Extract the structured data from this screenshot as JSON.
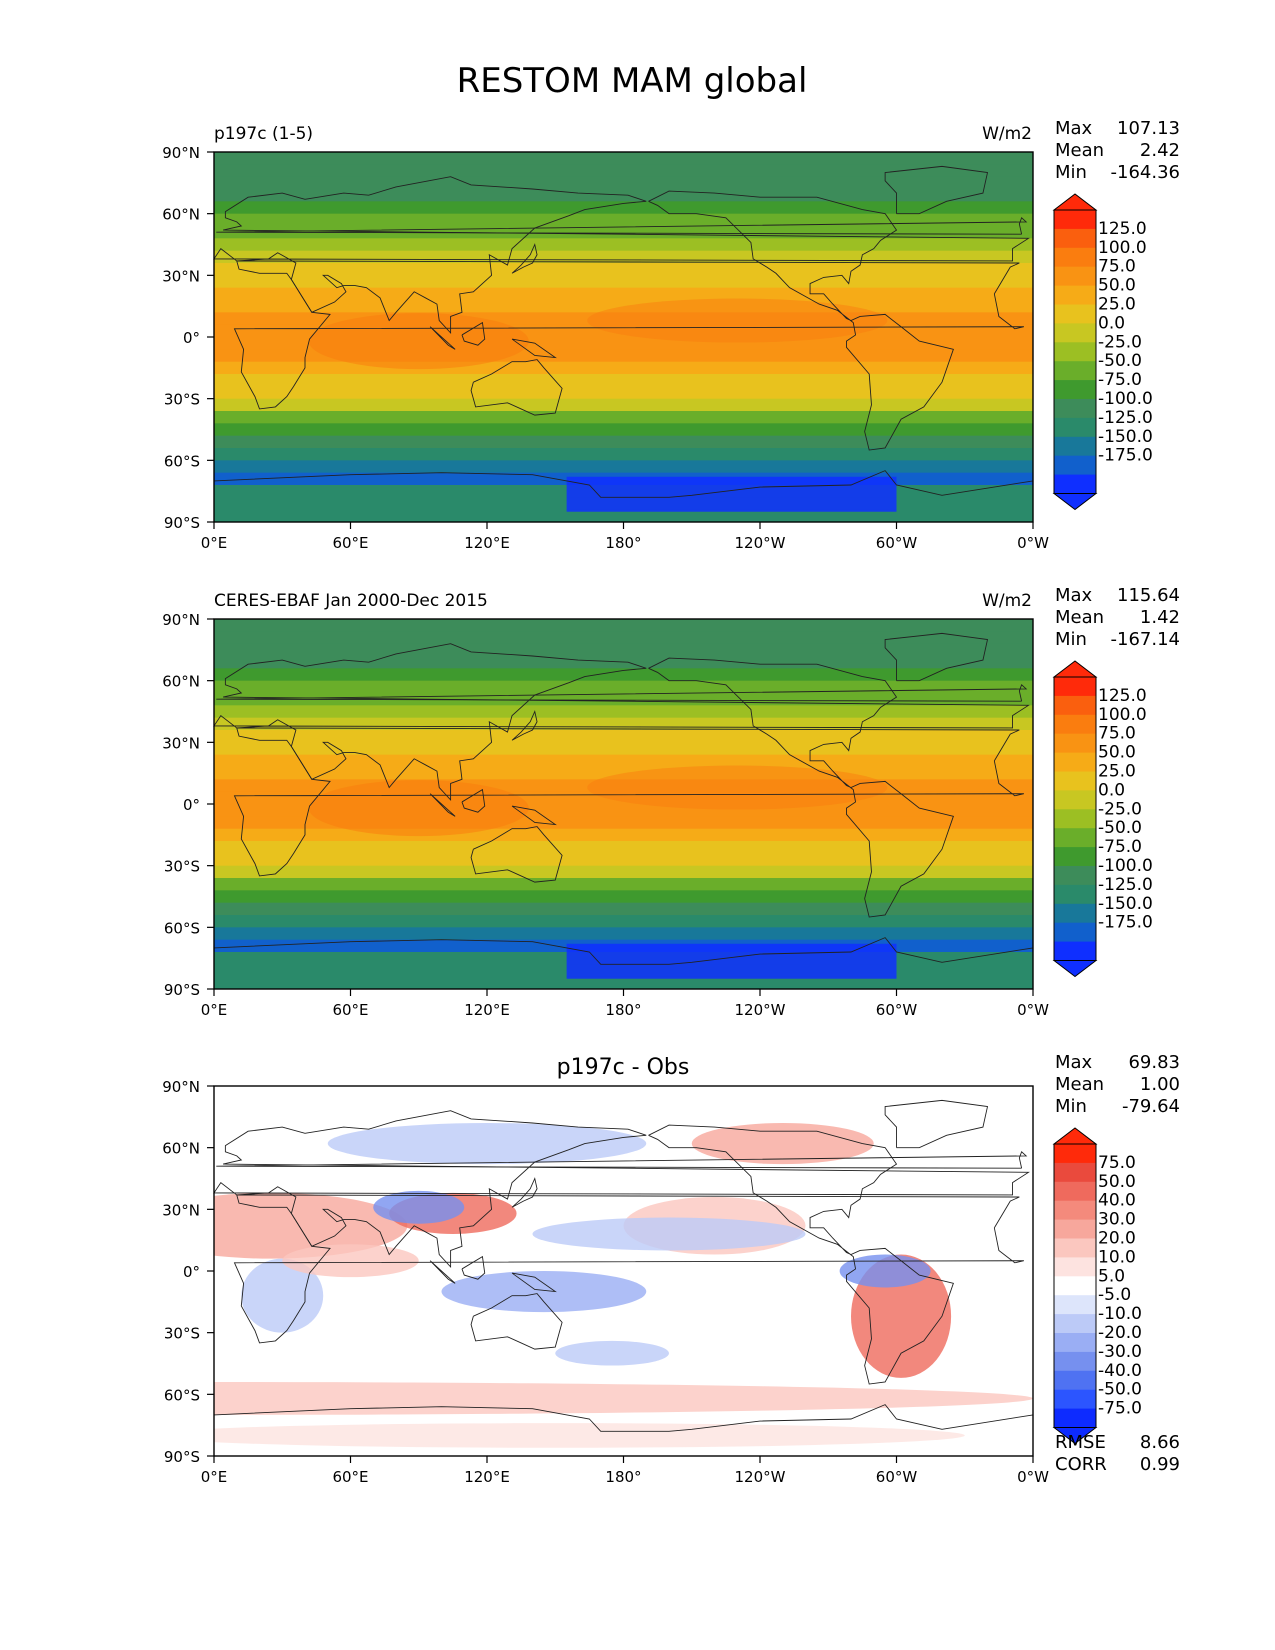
{
  "title": "RESTOM MAM global",
  "lat_labels": [
    "90°N",
    "60°N",
    "30°N",
    "0°",
    "30°S",
    "60°S",
    "90°S"
  ],
  "lon_labels": [
    "0°E",
    "60°E",
    "120°E",
    "180°",
    "120°W",
    "60°W",
    "0°W"
  ],
  "colors": {
    "ocean_fill_land_outline": "#222222",
    "test_ref_palette": [
      "#0f2fff",
      "#1160cc",
      "#18789a",
      "#2a8a6a",
      "#3d8c5a",
      "#3f9a2e",
      "#6aae2a",
      "#9cbf23",
      "#c8c722",
      "#e8c21e",
      "#f6ab17",
      "#f99313",
      "#fa7d0f",
      "#fa5f0e",
      "#ff2a0a"
    ],
    "diff_palette": [
      "#0d2bff",
      "#2c55ff",
      "#4f72f2",
      "#7690ef",
      "#9aaef4",
      "#bccaf7",
      "#dde5fb",
      "#ffffff",
      "#fde3e0",
      "#fbc7bf",
      "#f7a79c",
      "#f48a7c",
      "#ef6a5d",
      "#ea4a3d",
      "#ff2a0a"
    ]
  },
  "panels": [
    {
      "id": "test",
      "title_left": "p197c (1-5)",
      "title_right": "W/m2",
      "title_center": "",
      "stats": {
        "max_label": "Max",
        "max_value": "107.13",
        "mean_label": "Mean",
        "mean_value": "2.42",
        "min_label": "Min",
        "min_value": "-164.36"
      },
      "colorbar_labels": [
        "125.0",
        "100.0",
        "75.0",
        "50.0",
        "25.0",
        "0.0",
        "-25.0",
        "-50.0",
        "-75.0",
        "-100.0",
        "-125.0",
        "-150.0",
        "-175.0"
      ],
      "extra_stats": null
    },
    {
      "id": "reference",
      "title_left": "CERES-EBAF Jan 2000-Dec 2015",
      "title_right": "W/m2",
      "title_center": "",
      "stats": {
        "max_label": "Max",
        "max_value": "115.64",
        "mean_label": "Mean",
        "mean_value": "1.42",
        "min_label": "Min",
        "min_value": "-167.14"
      },
      "colorbar_labels": [
        "125.0",
        "100.0",
        "75.0",
        "50.0",
        "25.0",
        "0.0",
        "-25.0",
        "-50.0",
        "-75.0",
        "-100.0",
        "-125.0",
        "-150.0",
        "-175.0"
      ],
      "extra_stats": null
    },
    {
      "id": "difference",
      "title_left": "",
      "title_right": "",
      "title_center": "p197c - Obs",
      "stats": {
        "max_label": "Max",
        "max_value": "69.83",
        "mean_label": "Mean",
        "mean_value": "1.00",
        "min_label": "Min",
        "min_value": "-79.64"
      },
      "colorbar_labels": [
        "75.0",
        "50.0",
        "40.0",
        "30.0",
        "20.0",
        "10.0",
        "5.0",
        "-5.0",
        "-10.0",
        "-20.0",
        "-30.0",
        "-40.0",
        "-50.0",
        "-75.0"
      ],
      "extra_stats": {
        "rmse_label": "RMSE",
        "rmse_value": "8.66",
        "corr_label": "CORR",
        "corr_value": "0.99"
      }
    }
  ]
}
